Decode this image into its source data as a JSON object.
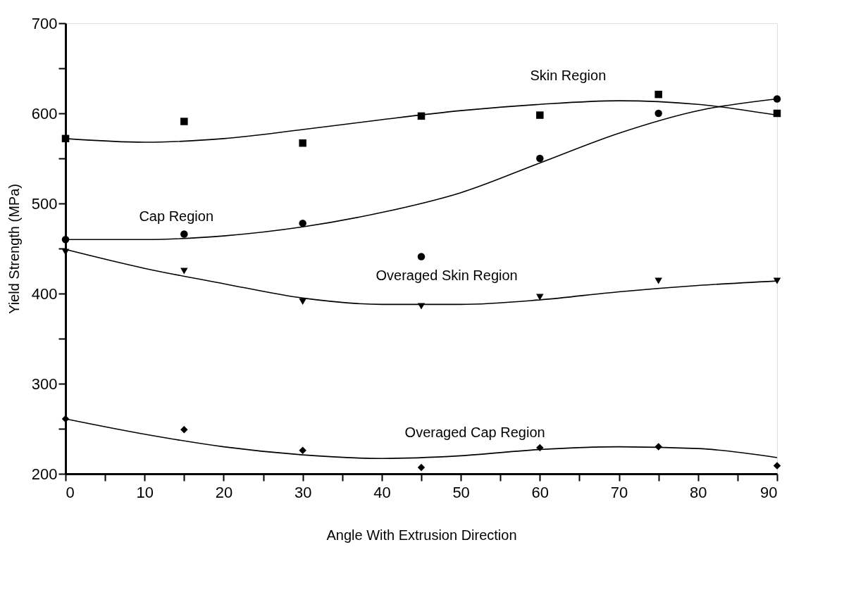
{
  "chart_data": {
    "type": "scatter",
    "xlabel": "Angle With Extrusion Direction",
    "ylabel": "Yield Strength (MPa)",
    "x": [
      0,
      15,
      30,
      45,
      60,
      75,
      90
    ],
    "xlim": [
      0,
      90
    ],
    "ylim": [
      200,
      700
    ],
    "xticks": [
      0,
      {
        "value": 5,
        "label": null
      },
      10,
      {
        "value": 15,
        "label": null
      },
      20,
      {
        "value": 25,
        "label": null
      },
      30,
      {
        "value": 35,
        "label": null
      },
      40,
      {
        "value": 45,
        "label": null
      },
      50,
      {
        "value": 55,
        "label": null
      },
      60,
      {
        "value": 65,
        "label": null
      },
      70,
      {
        "value": 75,
        "label": null
      },
      80,
      {
        "value": 85,
        "label": null
      },
      90
    ],
    "yticks": [
      200,
      {
        "value": 250,
        "label": null
      },
      300,
      {
        "value": 350,
        "label": null
      },
      400,
      {
        "value": 450,
        "label": null
      },
      500,
      {
        "value": 550,
        "label": null
      },
      600,
      {
        "value": 650,
        "label": null
      },
      700
    ],
    "grid": false,
    "series": [
      {
        "marker": "square",
        "color": "#000000",
        "values": [
          572,
          591,
          567,
          597,
          598,
          621,
          600
        ]
      },
      {
        "marker": "circle",
        "color": "#000000",
        "values": [
          460,
          466,
          478,
          441,
          550,
          600,
          616
        ]
      },
      {
        "marker": "triangle",
        "color": "#000000",
        "values": [
          446,
          425,
          391,
          386,
          396,
          414,
          414
        ]
      },
      {
        "marker": "diamond",
        "color": "#000000",
        "values": [
          261,
          249,
          226,
          207,
          229,
          230,
          209
        ]
      },
      {
        "type": "line",
        "name": "Skin Region",
        "line_style": "solid",
        "color": "#000000",
        "x": [
          0,
          10,
          20,
          30,
          40,
          50,
          60,
          70,
          80,
          90
        ],
        "values": [
          572,
          568,
          572,
          582,
          593,
          603,
          610,
          614,
          610,
          598
        ]
      },
      {
        "type": "line",
        "name": "Cap Region",
        "line_style": "solid",
        "color": "#000000",
        "x": [
          0,
          10,
          20,
          30,
          40,
          50,
          60,
          70,
          80,
          90
        ],
        "values": [
          460,
          460,
          464,
          474,
          490,
          512,
          545,
          578,
          603,
          616
        ]
      },
      {
        "type": "line",
        "name": "Overaged Skin Region",
        "line_style": "solid",
        "color": "#000000",
        "x": [
          0,
          10,
          20,
          30,
          40,
          50,
          60,
          70,
          80,
          90
        ],
        "values": [
          449,
          428,
          411,
          395,
          388,
          388,
          393,
          402,
          409,
          414
        ]
      },
      {
        "type": "line",
        "name": "Overaged Cap Region",
        "line_style": "solid",
        "color": "#000000",
        "x": [
          0,
          10,
          20,
          30,
          40,
          50,
          60,
          70,
          80,
          90
        ],
        "values": [
          261,
          244,
          230,
          221,
          217,
          220,
          227,
          230,
          228,
          218
        ]
      }
    ]
  }
}
